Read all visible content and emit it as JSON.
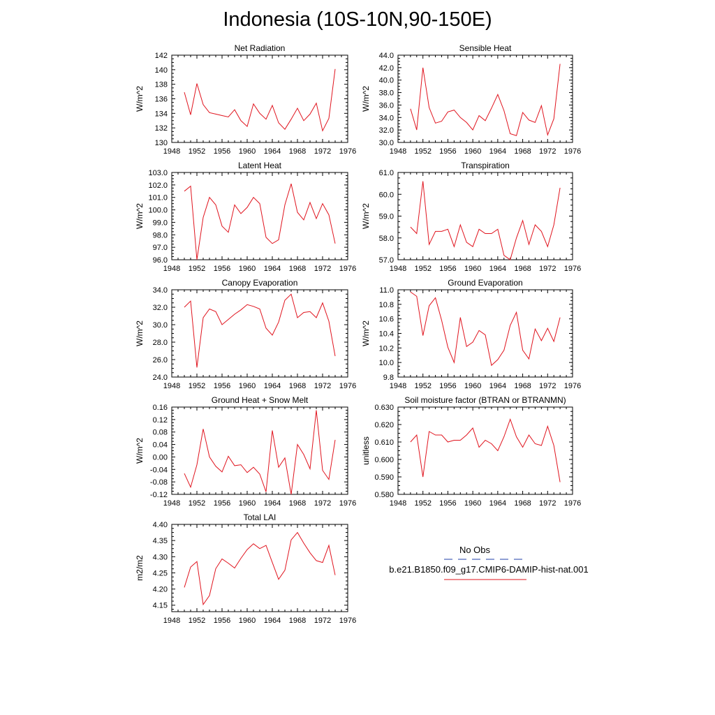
{
  "title": "Indonesia (10S-10N,90-150E)",
  "legend": {
    "obs_label": "No Obs",
    "obs_color": "#1f3fa8",
    "run_label": "b.e21.B1850.f09_g17.CMIP6-DAMIP-hist-nat.001",
    "run_color": "#e0141e"
  },
  "chart_data": [
    {
      "type": "line",
      "title": "Net Radiation",
      "ylabel": "W/m^2",
      "xlim": [
        1948,
        1976
      ],
      "xticks": [
        1948,
        1952,
        1956,
        1960,
        1964,
        1968,
        1972,
        1976
      ],
      "ylim": [
        130,
        142
      ],
      "yticks": [
        "130",
        "132",
        "134",
        "136",
        "138",
        "140",
        "142"
      ],
      "x": [
        1950,
        1951,
        1952,
        1953,
        1954,
        1955,
        1956,
        1957,
        1958,
        1959,
        1960,
        1961,
        1962,
        1963,
        1964,
        1965,
        1966,
        1967,
        1968,
        1969,
        1970,
        1971,
        1972,
        1973,
        1974
      ],
      "series": [
        {
          "values": [
            136.9,
            133.8,
            138.1,
            135.2,
            134.1,
            133.9,
            133.7,
            133.5,
            134.5,
            133.0,
            132.2,
            135.3,
            134.0,
            133.2,
            135.1,
            132.7,
            131.8,
            133.2,
            134.7,
            133.0,
            133.9,
            135.4,
            131.6,
            133.3,
            140.1
          ]
        }
      ]
    },
    {
      "type": "line",
      "title": "Sensible Heat",
      "ylabel": "W/m^2",
      "xlim": [
        1948,
        1976
      ],
      "xticks": [
        1948,
        1952,
        1956,
        1960,
        1964,
        1968,
        1972,
        1976
      ],
      "ylim": [
        30,
        44
      ],
      "yticks": [
        "30.0",
        "32.0",
        "34.0",
        "36.0",
        "38.0",
        "40.0",
        "42.0",
        "44.0"
      ],
      "x": [
        1950,
        1951,
        1952,
        1953,
        1954,
        1955,
        1956,
        1957,
        1958,
        1959,
        1960,
        1961,
        1962,
        1963,
        1964,
        1965,
        1966,
        1967,
        1968,
        1969,
        1970,
        1971,
        1972,
        1973,
        1974
      ],
      "series": [
        {
          "values": [
            35.4,
            32.0,
            42.0,
            35.6,
            33.1,
            33.4,
            34.9,
            35.2,
            34.0,
            33.2,
            32.0,
            34.3,
            33.5,
            35.5,
            37.7,
            35.1,
            31.4,
            31.1,
            34.8,
            33.6,
            33.2,
            35.9,
            31.2,
            33.8,
            42.6
          ]
        }
      ]
    },
    {
      "type": "line",
      "title": "Latent Heat",
      "ylabel": "W/m^2",
      "xlim": [
        1948,
        1976
      ],
      "xticks": [
        1948,
        1952,
        1956,
        1960,
        1964,
        1968,
        1972,
        1976
      ],
      "ylim": [
        96,
        103
      ],
      "yticks": [
        "96.0",
        "97.0",
        "98.0",
        "99.0",
        "100.0",
        "101.0",
        "102.0",
        "103.0"
      ],
      "x": [
        1950,
        1951,
        1952,
        1953,
        1954,
        1955,
        1956,
        1957,
        1958,
        1959,
        1960,
        1961,
        1962,
        1963,
        1964,
        1965,
        1966,
        1967,
        1968,
        1969,
        1970,
        1971,
        1972,
        1973,
        1974
      ],
      "series": [
        {
          "values": [
            101.5,
            101.9,
            96.0,
            99.4,
            101.0,
            100.4,
            98.7,
            98.2,
            100.4,
            99.7,
            100.2,
            101.0,
            100.5,
            97.8,
            97.3,
            97.6,
            100.4,
            102.1,
            99.8,
            99.2,
            100.6,
            99.3,
            100.5,
            99.6,
            97.3
          ]
        }
      ]
    },
    {
      "type": "line",
      "title": "Transpiration",
      "ylabel": "W/m^2",
      "xlim": [
        1948,
        1976
      ],
      "xticks": [
        1948,
        1952,
        1956,
        1960,
        1964,
        1968,
        1972,
        1976
      ],
      "ylim": [
        57,
        61
      ],
      "yticks": [
        "57.0",
        "58.0",
        "59.0",
        "60.0",
        "61.0"
      ],
      "x": [
        1950,
        1951,
        1952,
        1953,
        1954,
        1955,
        1956,
        1957,
        1958,
        1959,
        1960,
        1961,
        1962,
        1963,
        1964,
        1965,
        1966,
        1967,
        1968,
        1969,
        1970,
        1971,
        1972,
        1973,
        1974
      ],
      "series": [
        {
          "values": [
            58.5,
            58.2,
            60.6,
            57.7,
            58.3,
            58.3,
            58.4,
            57.6,
            58.6,
            57.8,
            57.6,
            58.4,
            58.2,
            58.2,
            58.4,
            57.2,
            57.0,
            58.0,
            58.8,
            57.7,
            58.6,
            58.3,
            57.6,
            58.6,
            60.3
          ]
        }
      ]
    },
    {
      "type": "line",
      "title": "Canopy Evaporation",
      "ylabel": "W/m^2",
      "xlim": [
        1948,
        1976
      ],
      "xticks": [
        1948,
        1952,
        1956,
        1960,
        1964,
        1968,
        1972,
        1976
      ],
      "ylim": [
        24,
        34
      ],
      "yticks": [
        "24.0",
        "26.0",
        "28.0",
        "30.0",
        "32.0",
        "34.0"
      ],
      "x": [
        1950,
        1951,
        1952,
        1953,
        1954,
        1955,
        1956,
        1957,
        1958,
        1959,
        1960,
        1961,
        1962,
        1963,
        1964,
        1965,
        1966,
        1967,
        1968,
        1969,
        1970,
        1971,
        1972,
        1973,
        1974
      ],
      "series": [
        {
          "values": [
            32.0,
            32.7,
            25.1,
            30.8,
            31.8,
            31.5,
            30.0,
            30.6,
            31.2,
            31.7,
            32.3,
            32.1,
            31.8,
            29.6,
            28.8,
            30.3,
            32.8,
            33.5,
            30.8,
            31.4,
            31.5,
            30.8,
            32.5,
            30.4,
            26.4
          ]
        }
      ]
    },
    {
      "type": "line",
      "title": "Ground Evaporation",
      "ylabel": "W/m^2",
      "xlim": [
        1948,
        1976
      ],
      "xticks": [
        1948,
        1952,
        1956,
        1960,
        1964,
        1968,
        1972,
        1976
      ],
      "ylim": [
        9.8,
        11.0
      ],
      "yticks": [
        "9.8",
        "10.0",
        "10.2",
        "10.4",
        "10.6",
        "10.8",
        "11.0"
      ],
      "x": [
        1950,
        1951,
        1952,
        1953,
        1954,
        1955,
        1956,
        1957,
        1958,
        1959,
        1960,
        1961,
        1962,
        1963,
        1964,
        1965,
        1966,
        1967,
        1968,
        1969,
        1970,
        1971,
        1972,
        1973,
        1974
      ],
      "series": [
        {
          "values": [
            10.97,
            10.91,
            10.37,
            10.78,
            10.89,
            10.58,
            10.21,
            10.0,
            10.62,
            10.22,
            10.28,
            10.44,
            10.38,
            9.96,
            10.04,
            10.17,
            10.51,
            10.69,
            10.17,
            10.05,
            10.46,
            10.3,
            10.47,
            10.29,
            10.62
          ]
        }
      ]
    },
    {
      "type": "line",
      "title": "Ground Heat + Snow Melt",
      "ylabel": "W/m^2",
      "xlim": [
        1948,
        1976
      ],
      "xticks": [
        1948,
        1952,
        1956,
        1960,
        1964,
        1968,
        1972,
        1976
      ],
      "ylim": [
        -0.12,
        0.16
      ],
      "yticks": [
        "-0.12",
        "-0.08",
        "-0.04",
        "0.00",
        "0.04",
        "0.08",
        "0.12",
        "0.16"
      ],
      "x": [
        1950,
        1951,
        1952,
        1953,
        1954,
        1955,
        1956,
        1957,
        1958,
        1959,
        1960,
        1961,
        1962,
        1963,
        1964,
        1965,
        1966,
        1967,
        1968,
        1969,
        1970,
        1971,
        1972,
        1973,
        1974
      ],
      "series": [
        {
          "values": [
            -0.053,
            -0.097,
            -0.025,
            0.09,
            0.0,
            -0.03,
            -0.048,
            0.002,
            -0.028,
            -0.025,
            -0.05,
            -0.033,
            -0.055,
            -0.112,
            0.085,
            -0.033,
            -0.003,
            -0.12,
            0.04,
            0.008,
            -0.038,
            0.15,
            -0.043,
            -0.072,
            0.055
          ]
        }
      ]
    },
    {
      "type": "line",
      "title": "Soil moisture factor (BTRAN or BTRANMN)",
      "ylabel": "unitless",
      "xlim": [
        1948,
        1976
      ],
      "xticks": [
        1948,
        1952,
        1956,
        1960,
        1964,
        1968,
        1972,
        1976
      ],
      "ylim": [
        0.58,
        0.63
      ],
      "yticks": [
        "0.580",
        "0.590",
        "0.600",
        "0.610",
        "0.620",
        "0.630"
      ],
      "x": [
        1950,
        1951,
        1952,
        1953,
        1954,
        1955,
        1956,
        1957,
        1958,
        1959,
        1960,
        1961,
        1962,
        1963,
        1964,
        1965,
        1966,
        1967,
        1968,
        1969,
        1970,
        1971,
        1972,
        1973,
        1974
      ],
      "series": [
        {
          "values": [
            0.61,
            0.614,
            0.59,
            0.616,
            0.614,
            0.614,
            0.61,
            0.611,
            0.611,
            0.614,
            0.618,
            0.607,
            0.611,
            0.609,
            0.605,
            0.613,
            0.623,
            0.613,
            0.607,
            0.614,
            0.609,
            0.608,
            0.619,
            0.608,
            0.587
          ]
        }
      ]
    },
    {
      "type": "line",
      "title": "Total LAI",
      "ylabel": "m2/m2",
      "xlim": [
        1948,
        1976
      ],
      "xticks": [
        1948,
        1952,
        1956,
        1960,
        1964,
        1968,
        1972,
        1976
      ],
      "ylim": [
        4.13,
        4.4
      ],
      "yticks": [
        "4.15",
        "4.20",
        "4.25",
        "4.30",
        "4.35",
        "4.40"
      ],
      "x": [
        1950,
        1951,
        1952,
        1953,
        1954,
        1955,
        1956,
        1957,
        1958,
        1959,
        1960,
        1961,
        1962,
        1963,
        1964,
        1965,
        1966,
        1967,
        1968,
        1969,
        1970,
        1971,
        1972,
        1973,
        1974
      ],
      "series": [
        {
          "values": [
            4.205,
            4.268,
            4.285,
            4.152,
            4.18,
            4.263,
            4.293,
            4.28,
            4.265,
            4.295,
            4.322,
            4.34,
            4.325,
            4.335,
            4.282,
            4.23,
            4.258,
            4.352,
            4.375,
            4.342,
            4.312,
            4.288,
            4.282,
            4.335,
            4.243
          ]
        }
      ]
    }
  ]
}
